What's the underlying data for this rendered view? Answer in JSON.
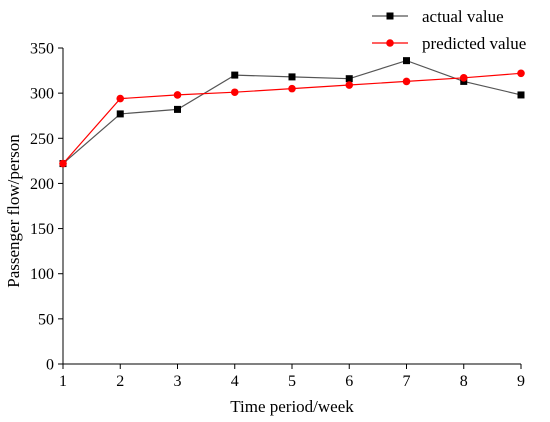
{
  "chart_data": {
    "type": "line",
    "xlabel": "Time period/week",
    "ylabel": "Passenger flow/person",
    "x": [
      1,
      2,
      3,
      4,
      5,
      6,
      7,
      8,
      9
    ],
    "xlim": [
      1,
      9
    ],
    "ylim": [
      0,
      350
    ],
    "xticks": [
      "1",
      "2",
      "3",
      "4",
      "5",
      "6",
      "7",
      "8",
      "9"
    ],
    "yticks": [
      "0",
      "50",
      "100",
      "150",
      "200",
      "250",
      "300",
      "350"
    ],
    "grid": false,
    "legend_position": "top-right",
    "series": [
      {
        "name": "actual value",
        "color": "#000000",
        "line_color": "#555555",
        "marker": "square",
        "values": [
          222,
          277,
          282,
          320,
          318,
          316,
          336,
          313,
          298
        ]
      },
      {
        "name": "predicted value",
        "color": "#ff0000",
        "line_color": "#ff0000",
        "marker": "circle",
        "values": [
          222,
          294,
          298,
          301,
          305,
          309,
          313,
          317,
          322
        ]
      }
    ]
  }
}
